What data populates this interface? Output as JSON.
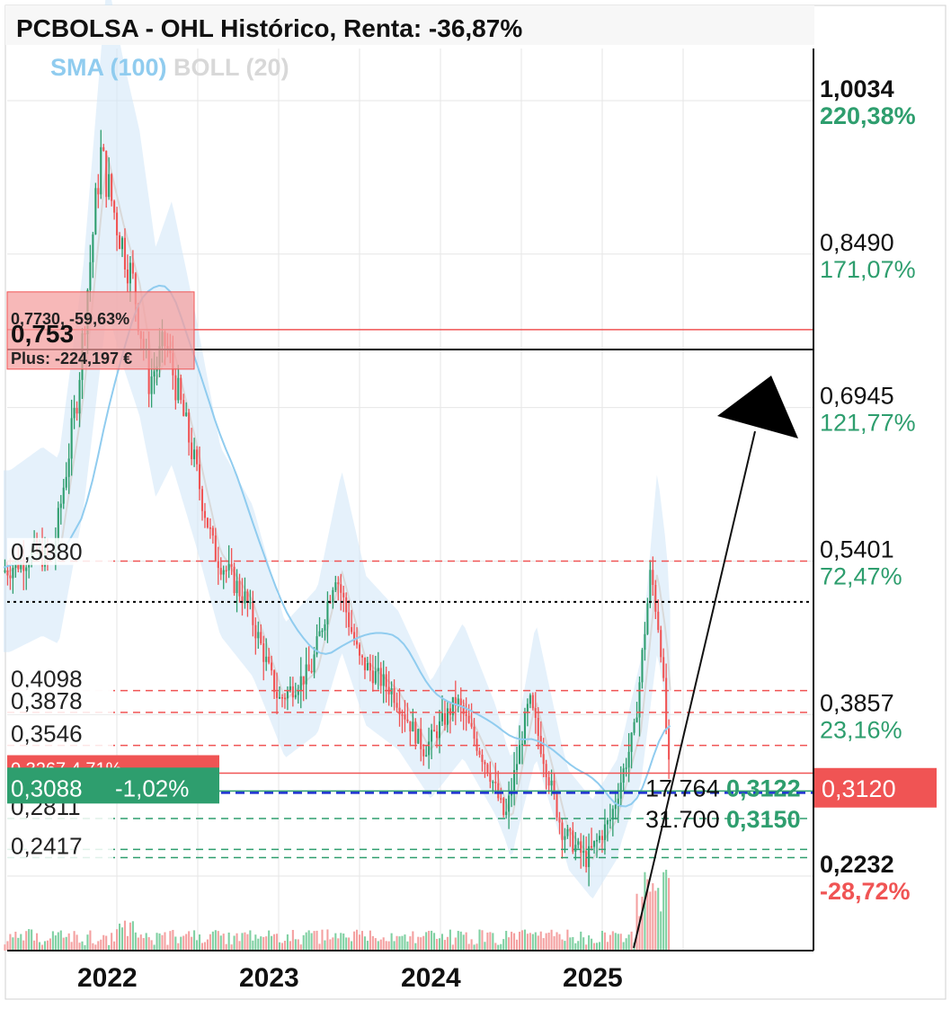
{
  "header": {
    "title": "PCBOLSA - OHL Histórico, Renta: -36,87%",
    "indicator_sma": "SMA (100)",
    "indicator_boll": "BOLL (20)"
  },
  "colors": {
    "up": "#2e9e6e",
    "down": "#f05454",
    "sma": "#90ccef",
    "boll_band": "#cfe6f7",
    "grid": "#e6e6e6",
    "axis": "#111111",
    "level_red": "#f05454",
    "level_green": "#2e9e6e",
    "level_blue": "#1a2fd0"
  },
  "chart_data": {
    "type": "candlestick",
    "title": "PCBOLSA - OHL Histórico, Renta: -36,87%",
    "x_ticks": [
      "2022",
      "2023",
      "2024",
      "2025"
    ],
    "y_axis_labels": [
      {
        "price": "1,0034",
        "pct": "220,38%",
        "bold": true,
        "pct_color": "green"
      },
      {
        "price": "0,8490",
        "pct": "171,07%",
        "bold": false,
        "pct_color": "green"
      },
      {
        "price": "0,6945",
        "pct": "121,77%",
        "bold": false,
        "pct_color": "green"
      },
      {
        "price": "0,5401",
        "pct": "72,47%",
        "bold": false,
        "pct_color": "green"
      },
      {
        "price": "0,3857",
        "pct": "23,16%",
        "bold": false,
        "pct_color": "green"
      },
      {
        "price": "0,2232",
        "pct": "-28,72%",
        "bold": true,
        "pct_color": "red"
      }
    ],
    "current_price": "0,3120",
    "left_levels": [
      "0,5380",
      "0,4098",
      "0,3878",
      "0,3546",
      "0,2811",
      "0,2417"
    ],
    "position_box": {
      "line1": "0,7730, -59,63%",
      "line2": "0,753",
      "line3": "Plus: -224,197 €"
    },
    "green_box": {
      "price": "0,3088",
      "pct": "-1,02%"
    },
    "hidden_red_box": "0,3267  4,71%",
    "order_labels": [
      {
        "qty": "17.764",
        "price": "0,3122"
      },
      {
        "qty": "31.700",
        "price": "0,3150"
      }
    ],
    "series": [
      {
        "name": "SMA (100)",
        "type": "line"
      },
      {
        "name": "BOLL (20)",
        "type": "band"
      }
    ],
    "ylim": [
      0.18,
      1.06
    ],
    "approx_close_path": [
      {
        "t": 2021.3,
        "v": 0.53
      },
      {
        "t": 2021.5,
        "v": 0.55
      },
      {
        "t": 2021.6,
        "v": 0.54
      },
      {
        "t": 2021.75,
        "v": 0.7
      },
      {
        "t": 2021.9,
        "v": 0.95
      },
      {
        "t": 2022.0,
        "v": 0.88
      },
      {
        "t": 2022.1,
        "v": 0.82
      },
      {
        "t": 2022.2,
        "v": 0.72
      },
      {
        "t": 2022.3,
        "v": 0.76
      },
      {
        "t": 2022.45,
        "v": 0.66
      },
      {
        "t": 2022.6,
        "v": 0.55
      },
      {
        "t": 2022.8,
        "v": 0.5
      },
      {
        "t": 2023.0,
        "v": 0.4
      },
      {
        "t": 2023.2,
        "v": 0.43
      },
      {
        "t": 2023.35,
        "v": 0.53
      },
      {
        "t": 2023.5,
        "v": 0.44
      },
      {
        "t": 2023.7,
        "v": 0.41
      },
      {
        "t": 2023.9,
        "v": 0.35
      },
      {
        "t": 2024.1,
        "v": 0.4
      },
      {
        "t": 2024.3,
        "v": 0.33
      },
      {
        "t": 2024.4,
        "v": 0.28
      },
      {
        "t": 2024.55,
        "v": 0.4
      },
      {
        "t": 2024.75,
        "v": 0.27
      },
      {
        "t": 2024.9,
        "v": 0.24
      },
      {
        "t": 2025.05,
        "v": 0.28
      },
      {
        "t": 2025.2,
        "v": 0.37
      },
      {
        "t": 2025.3,
        "v": 0.53
      },
      {
        "t": 2025.36,
        "v": 0.46
      },
      {
        "t": 2025.42,
        "v": 0.31
      }
    ]
  }
}
